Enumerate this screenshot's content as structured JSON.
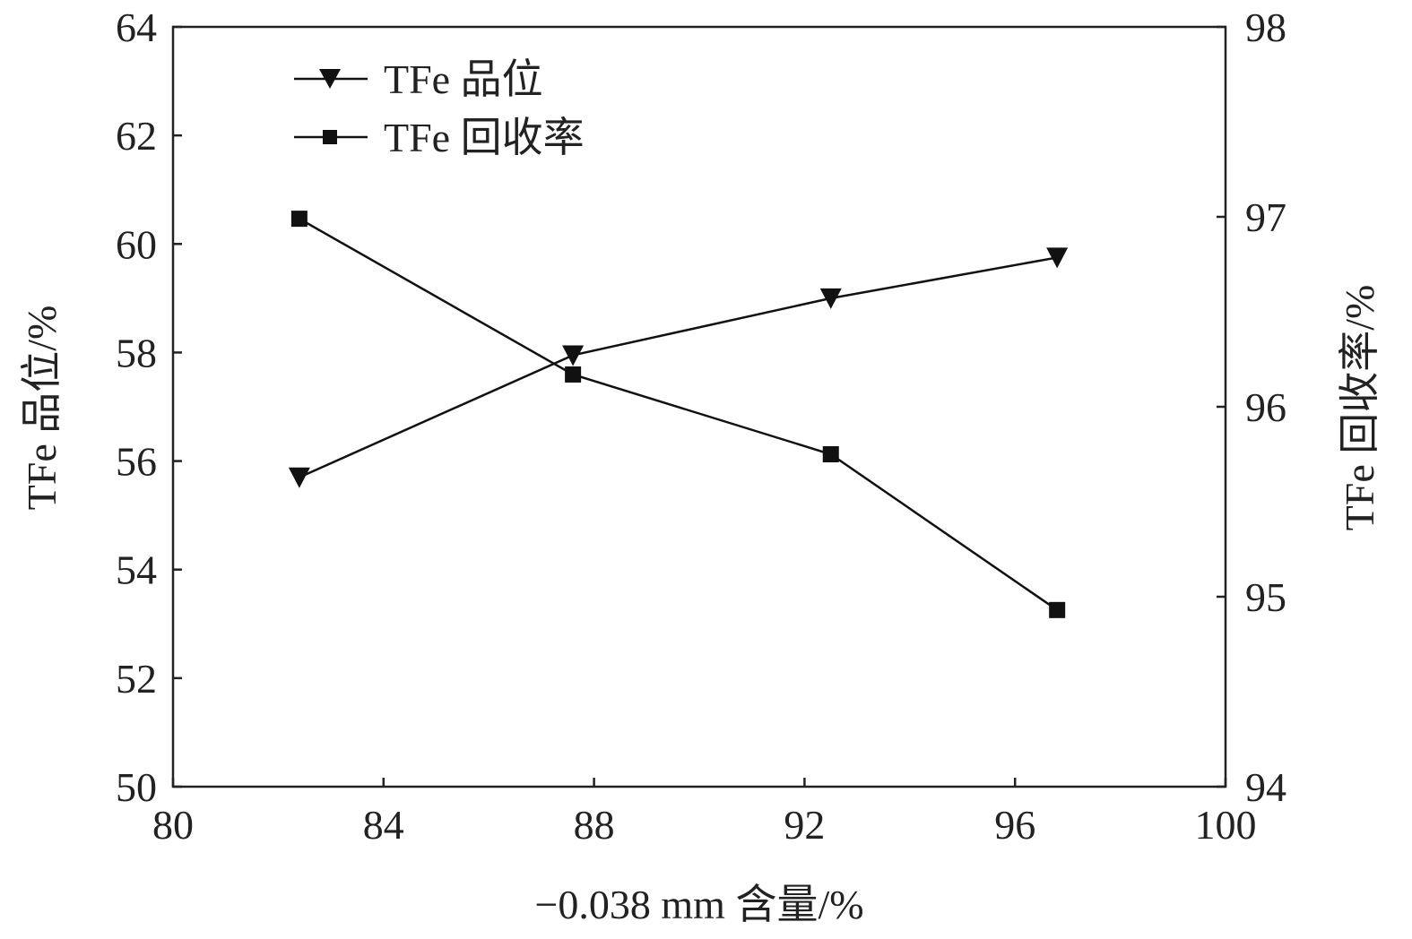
{
  "chart_data": {
    "type": "line",
    "xlabel": "−0.038 mm 含量/%",
    "ylabel_left": "TFe 品位/%",
    "ylabel_right": "TFe 回收率/%",
    "xlim": [
      80,
      100
    ],
    "ylim_left": [
      50,
      64
    ],
    "ylim_right": [
      94,
      98
    ],
    "x_ticks": [
      "80",
      "84",
      "88",
      "92",
      "96",
      "100"
    ],
    "y_left_ticks": [
      "50",
      "52",
      "54",
      "56",
      "58",
      "60",
      "62",
      "64"
    ],
    "y_right_ticks": [
      "94",
      "95",
      "96",
      "97",
      "98"
    ],
    "grid": false,
    "legend_position": "top-left",
    "series": [
      {
        "name": "TFe 品位",
        "axis": "left",
        "marker": "triangle-down",
        "color": "#111111",
        "x": [
          82.4,
          87.6,
          92.5,
          96.8
        ],
        "y": [
          55.7,
          57.95,
          59.0,
          59.75
        ]
      },
      {
        "name": "TFe 回收率",
        "axis": "right",
        "marker": "square",
        "color": "#111111",
        "x": [
          82.4,
          87.6,
          92.5,
          96.8
        ],
        "y": [
          96.99,
          96.17,
          95.75,
          94.93
        ]
      }
    ]
  }
}
